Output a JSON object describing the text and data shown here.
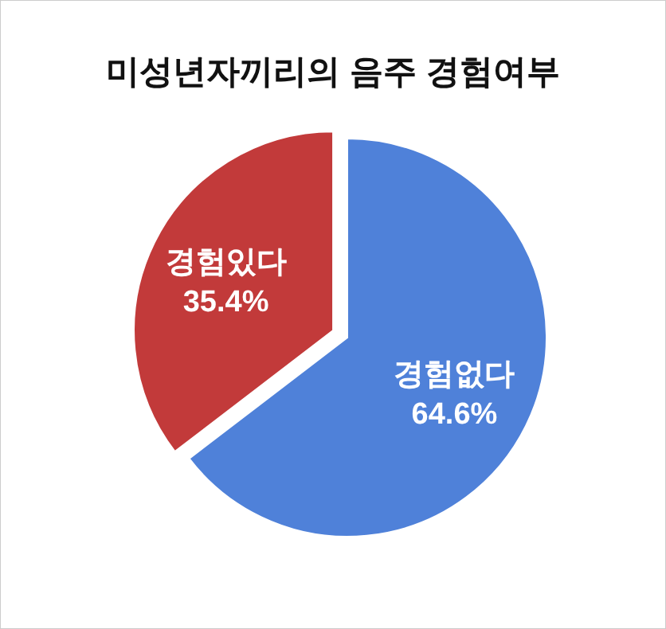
{
  "chart_data": {
    "type": "pie",
    "title": "미성년자끼리의 음주 경험여부",
    "categories": [
      "경험없다",
      "경험있다"
    ],
    "values": [
      64.6,
      35.4
    ],
    "value_labels": [
      "64.6%",
      "35.4%"
    ],
    "colors": [
      "#4f81d9",
      "#c23a3a"
    ]
  }
}
